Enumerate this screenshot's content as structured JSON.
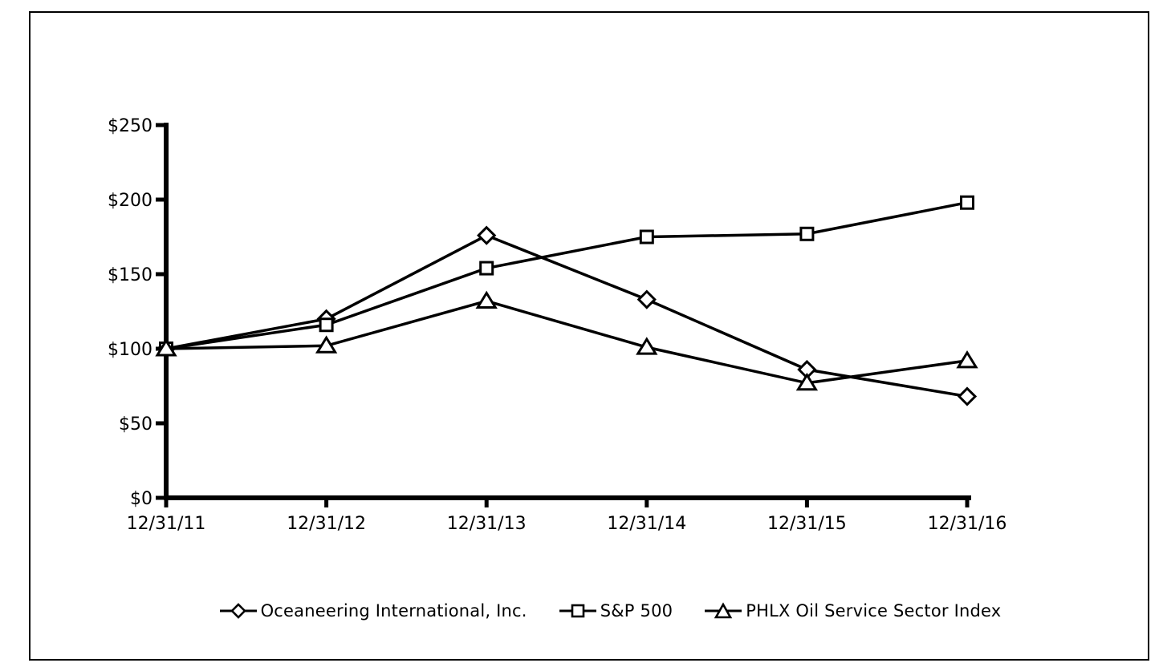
{
  "figure": {
    "background": "#ffffff",
    "border_color": "#000000"
  },
  "chart_data": {
    "type": "line",
    "title": "",
    "xlabel": "",
    "ylabel": "",
    "x_categories": [
      "12/31/11",
      "12/31/12",
      "12/31/13",
      "12/31/14",
      "12/31/15",
      "12/31/16"
    ],
    "y_tick_values": [
      0,
      50,
      100,
      150,
      200,
      250
    ],
    "y_tick_labels": [
      "$0",
      "$50",
      "$100",
      "$150",
      "$200",
      "$250"
    ],
    "ylim": [
      0,
      250
    ],
    "grid": false,
    "legend_position": "bottom",
    "line_color": "#000000",
    "marker_fill": "#ffffff",
    "series": [
      {
        "name": "Oceaneering International, Inc.",
        "marker": "diamond",
        "values": [
          100,
          120,
          176,
          133,
          86,
          68
        ]
      },
      {
        "name": "S&P 500",
        "marker": "square",
        "values": [
          100,
          116,
          154,
          175,
          177,
          198
        ]
      },
      {
        "name": "PHLX Oil Service Sector Index",
        "marker": "triangle",
        "values": [
          100,
          102,
          132,
          101,
          77,
          92
        ]
      }
    ]
  }
}
